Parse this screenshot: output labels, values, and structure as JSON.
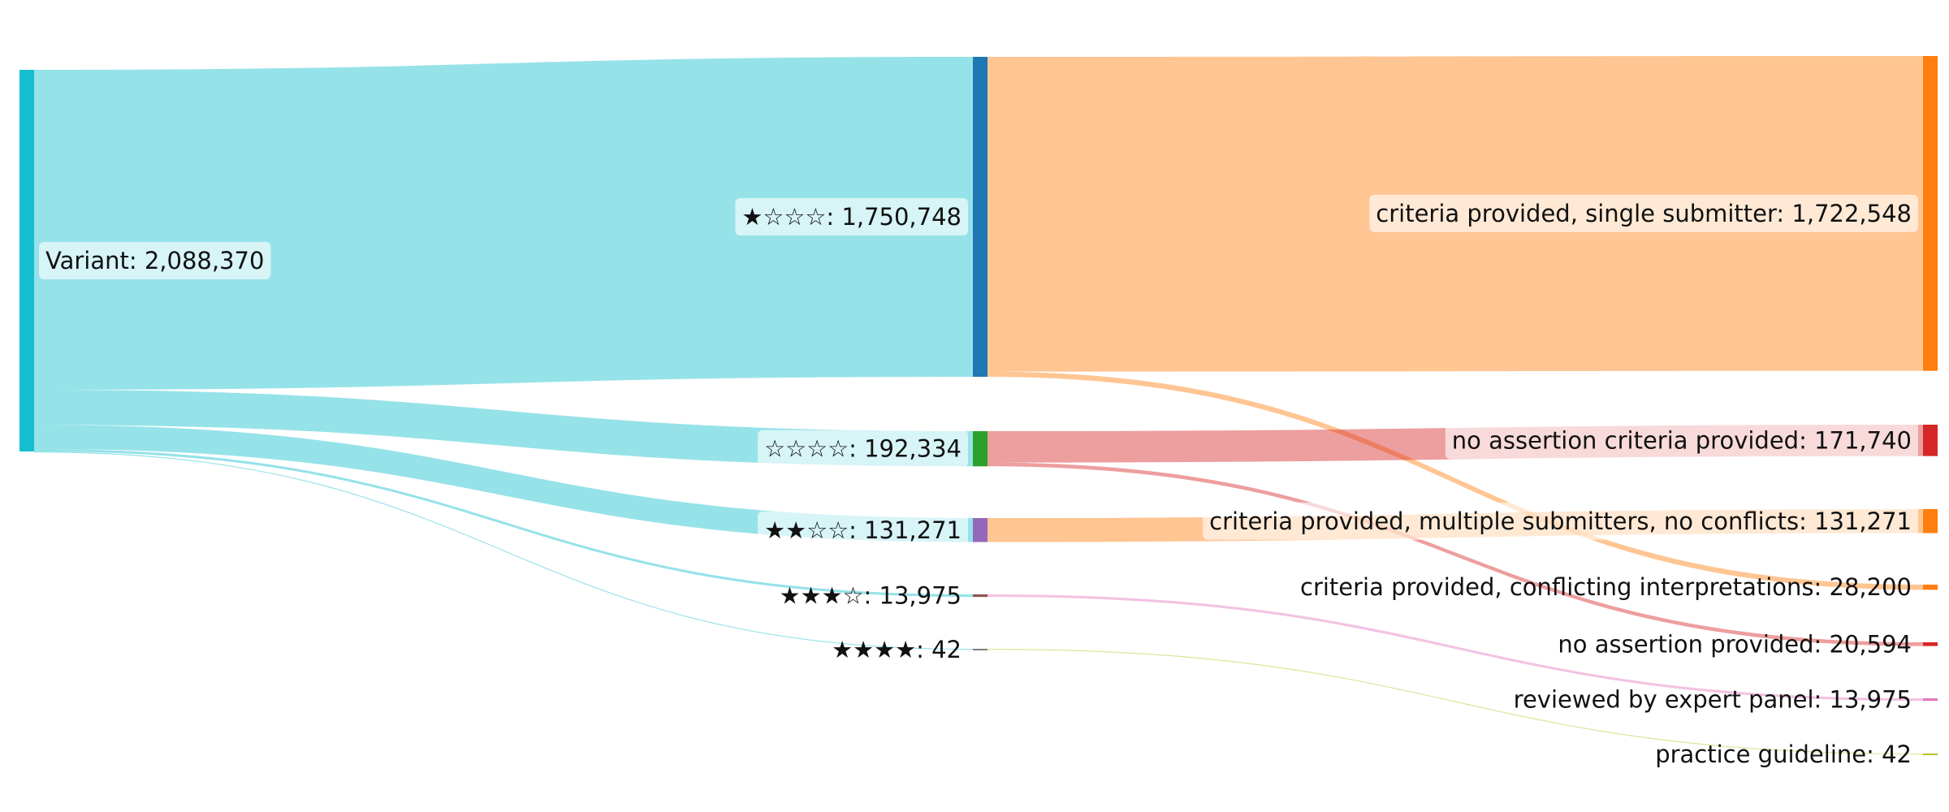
{
  "chart_data": {
    "type": "sankey",
    "nodes": [
      {
        "id": "variant",
        "label": "Variant: 2,088,370",
        "value": 2088370,
        "color": "#17becf",
        "column": 0
      },
      {
        "id": "s1",
        "label": "★☆☆☆: 1,750,748",
        "value": 1750748,
        "color": "#1f77b4",
        "column": 1
      },
      {
        "id": "s0",
        "label": "☆☆☆☆: 192,334",
        "value": 192334,
        "color": "#2ca02c",
        "column": 1
      },
      {
        "id": "s2",
        "label": "★★☆☆: 131,271",
        "value": 131271,
        "color": "#9467bd",
        "column": 1
      },
      {
        "id": "s3",
        "label": "★★★☆: 13,975",
        "value": 13975,
        "color": "#8c564b",
        "column": 1
      },
      {
        "id": "s4",
        "label": "★★★★: 42",
        "value": 42,
        "color": "#7f7f7f",
        "column": 1
      },
      {
        "id": "cps",
        "label": "criteria provided, single submitter: 1,722,548",
        "value": 1722548,
        "color": "#ff7f0e",
        "column": 2
      },
      {
        "id": "nacp",
        "label": "no assertion criteria provided: 171,740",
        "value": 171740,
        "color": "#d62728",
        "column": 2
      },
      {
        "id": "cpm",
        "label": "criteria provided, multiple submitters, no conflicts: 131,271",
        "value": 131271,
        "color": "#ff7f0e",
        "column": 2
      },
      {
        "id": "cpc",
        "label": "criteria provided, conflicting interpretations: 28,200",
        "value": 28200,
        "color": "#ff7f0e",
        "column": 2
      },
      {
        "id": "nap",
        "label": "no assertion provided: 20,594",
        "value": 20594,
        "color": "#d62728",
        "column": 2
      },
      {
        "id": "rep",
        "label": "reviewed by expert panel: 13,975",
        "value": 13975,
        "color": "#e377c2",
        "column": 2
      },
      {
        "id": "pg",
        "label": "practice guideline: 42",
        "value": 42,
        "color": "#bcbd22",
        "column": 2
      }
    ],
    "links": [
      {
        "source": "variant",
        "target": "s1",
        "value": 1750748
      },
      {
        "source": "variant",
        "target": "s0",
        "value": 192334
      },
      {
        "source": "variant",
        "target": "s2",
        "value": 131271
      },
      {
        "source": "variant",
        "target": "s3",
        "value": 13975
      },
      {
        "source": "variant",
        "target": "s4",
        "value": 42
      },
      {
        "source": "s1",
        "target": "cps",
        "value": 1722548
      },
      {
        "source": "s1",
        "target": "cpc",
        "value": 28200
      },
      {
        "source": "s0",
        "target": "nacp",
        "value": 171740
      },
      {
        "source": "s0",
        "target": "nap",
        "value": 20594
      },
      {
        "source": "s2",
        "target": "cpm",
        "value": 131271
      },
      {
        "source": "s3",
        "target": "rep",
        "value": 13975
      },
      {
        "source": "s4",
        "target": "pg",
        "value": 42
      }
    ]
  }
}
